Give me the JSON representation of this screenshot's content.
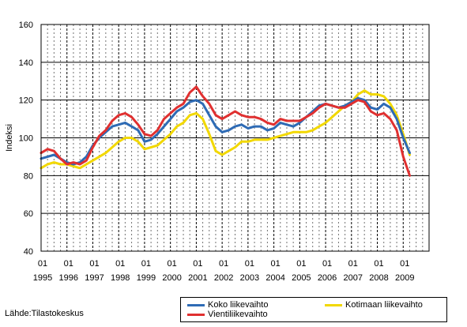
{
  "source_text": "Lähde:Tilastokeskus",
  "chart_data": {
    "type": "line",
    "title": "",
    "xlabel": "",
    "ylabel": "Indeksi",
    "ylim": [
      40,
      160
    ],
    "yticks": [
      40,
      60,
      80,
      100,
      120,
      140,
      160
    ],
    "xlim": [
      1995.0,
      2010.0
    ],
    "year_ticks": [
      {
        "month": "01",
        "year": "1995"
      },
      {
        "month": "01",
        "year": "1996"
      },
      {
        "month": "01",
        "year": "1997"
      },
      {
        "month": "01",
        "year": "1998"
      },
      {
        "month": "01",
        "year": "1999"
      },
      {
        "month": "01",
        "year": "2000"
      },
      {
        "month": "01",
        "year": "2001"
      },
      {
        "month": "01",
        "year": "2002"
      },
      {
        "month": "01",
        "year": "2003"
      },
      {
        "month": "01",
        "year": "2004"
      },
      {
        "month": "01",
        "year": "2005"
      },
      {
        "month": "01",
        "year": "2006"
      },
      {
        "month": "01",
        "year": "2007"
      },
      {
        "month": "01",
        "year": "2008"
      },
      {
        "month": "01",
        "year": "2009"
      }
    ],
    "grid": {
      "horizontal": "solid",
      "vertical": "dashed",
      "quarterly_minor": true
    },
    "legend": {
      "position": "bottom"
    },
    "series": [
      {
        "name": "Koko liikevaihto",
        "color": "#2e6bb5",
        "x": [
          1995.0,
          1995.25,
          1995.5,
          1995.75,
          1996.0,
          1996.25,
          1996.5,
          1996.75,
          1997.0,
          1997.25,
          1997.5,
          1997.75,
          1998.0,
          1998.25,
          1998.5,
          1998.75,
          1999.0,
          1999.25,
          1999.5,
          1999.75,
          2000.0,
          2000.25,
          2000.5,
          2000.75,
          2001.0,
          2001.25,
          2001.5,
          2001.75,
          2002.0,
          2002.25,
          2002.5,
          2002.75,
          2003.0,
          2003.25,
          2003.5,
          2003.75,
          2004.0,
          2004.25,
          2004.5,
          2004.75,
          2005.0,
          2005.25,
          2005.5,
          2005.75,
          2006.0,
          2006.25,
          2006.5,
          2006.75,
          2007.0,
          2007.25,
          2007.5,
          2007.75,
          2008.0,
          2008.25,
          2008.5,
          2008.75,
          2009.0,
          2009.25
        ],
        "y": [
          89,
          90,
          91,
          89,
          87,
          86,
          87,
          90,
          96,
          100,
          103,
          106,
          107,
          108,
          106,
          104,
          98,
          99,
          102,
          106,
          110,
          114,
          116,
          119,
          120,
          118,
          112,
          106,
          103,
          104,
          106,
          107,
          105,
          106,
          106,
          104,
          105,
          108,
          107,
          106,
          108,
          111,
          114,
          117,
          118,
          117,
          116,
          117,
          119,
          121,
          120,
          116,
          115,
          118,
          116,
          110,
          100,
          92
        ]
      },
      {
        "name": "Vientiliikevaihto",
        "color": "#e03030",
        "x": [
          1995.0,
          1995.25,
          1995.5,
          1995.75,
          1996.0,
          1996.25,
          1996.5,
          1996.75,
          1997.0,
          1997.25,
          1997.5,
          1997.75,
          1998.0,
          1998.25,
          1998.5,
          1998.75,
          1999.0,
          1999.25,
          1999.5,
          1999.75,
          2000.0,
          2000.25,
          2000.5,
          2000.75,
          2001.0,
          2001.25,
          2001.5,
          2001.75,
          2002.0,
          2002.25,
          2002.5,
          2002.75,
          2003.0,
          2003.25,
          2003.5,
          2003.75,
          2004.0,
          2004.25,
          2004.5,
          2004.75,
          2005.0,
          2005.25,
          2005.5,
          2005.75,
          2006.0,
          2006.25,
          2006.5,
          2006.75,
          2007.0,
          2007.25,
          2007.5,
          2007.75,
          2008.0,
          2008.25,
          2008.5,
          2008.75,
          2009.0,
          2009.25
        ],
        "y": [
          92,
          94,
          93,
          89,
          86,
          87,
          86,
          88,
          95,
          101,
          104,
          109,
          112,
          113,
          111,
          107,
          102,
          101,
          104,
          110,
          113,
          116,
          118,
          124,
          127,
          122,
          118,
          112,
          110,
          112,
          114,
          112,
          111,
          111,
          110,
          108,
          107,
          110,
          109,
          109,
          109,
          111,
          113,
          116,
          118,
          117,
          116,
          116,
          118,
          120,
          119,
          114,
          112,
          113,
          110,
          104,
          90,
          80
        ]
      },
      {
        "name": "Kotimaan liikevaihto",
        "color": "#f2d800",
        "x": [
          1995.0,
          1995.25,
          1995.5,
          1995.75,
          1996.0,
          1996.25,
          1996.5,
          1996.75,
          1997.0,
          1997.25,
          1997.5,
          1997.75,
          1998.0,
          1998.25,
          1998.5,
          1998.75,
          1999.0,
          1999.25,
          1999.5,
          1999.75,
          2000.0,
          2000.25,
          2000.5,
          2000.75,
          2001.0,
          2001.25,
          2001.5,
          2001.75,
          2002.0,
          2002.25,
          2002.5,
          2002.75,
          2003.0,
          2003.25,
          2003.5,
          2003.75,
          2004.0,
          2004.25,
          2004.5,
          2004.75,
          2005.0,
          2005.25,
          2005.5,
          2005.75,
          2006.0,
          2006.25,
          2006.5,
          2006.75,
          2007.0,
          2007.25,
          2007.5,
          2007.75,
          2008.0,
          2008.25,
          2008.5,
          2008.75,
          2009.0,
          2009.25
        ],
        "y": [
          84,
          86,
          87,
          86,
          86,
          85,
          84,
          86,
          88,
          90,
          92,
          95,
          98,
          100,
          100,
          98,
          94,
          95,
          96,
          99,
          102,
          106,
          108,
          112,
          113,
          110,
          102,
          93,
          91,
          93,
          95,
          98,
          98,
          99,
          99,
          99,
          100,
          101,
          102,
          103,
          103,
          103,
          104,
          106,
          108,
          111,
          114,
          117,
          119,
          123,
          125,
          123,
          123,
          122,
          118,
          112,
          102,
          91
        ]
      }
    ]
  }
}
